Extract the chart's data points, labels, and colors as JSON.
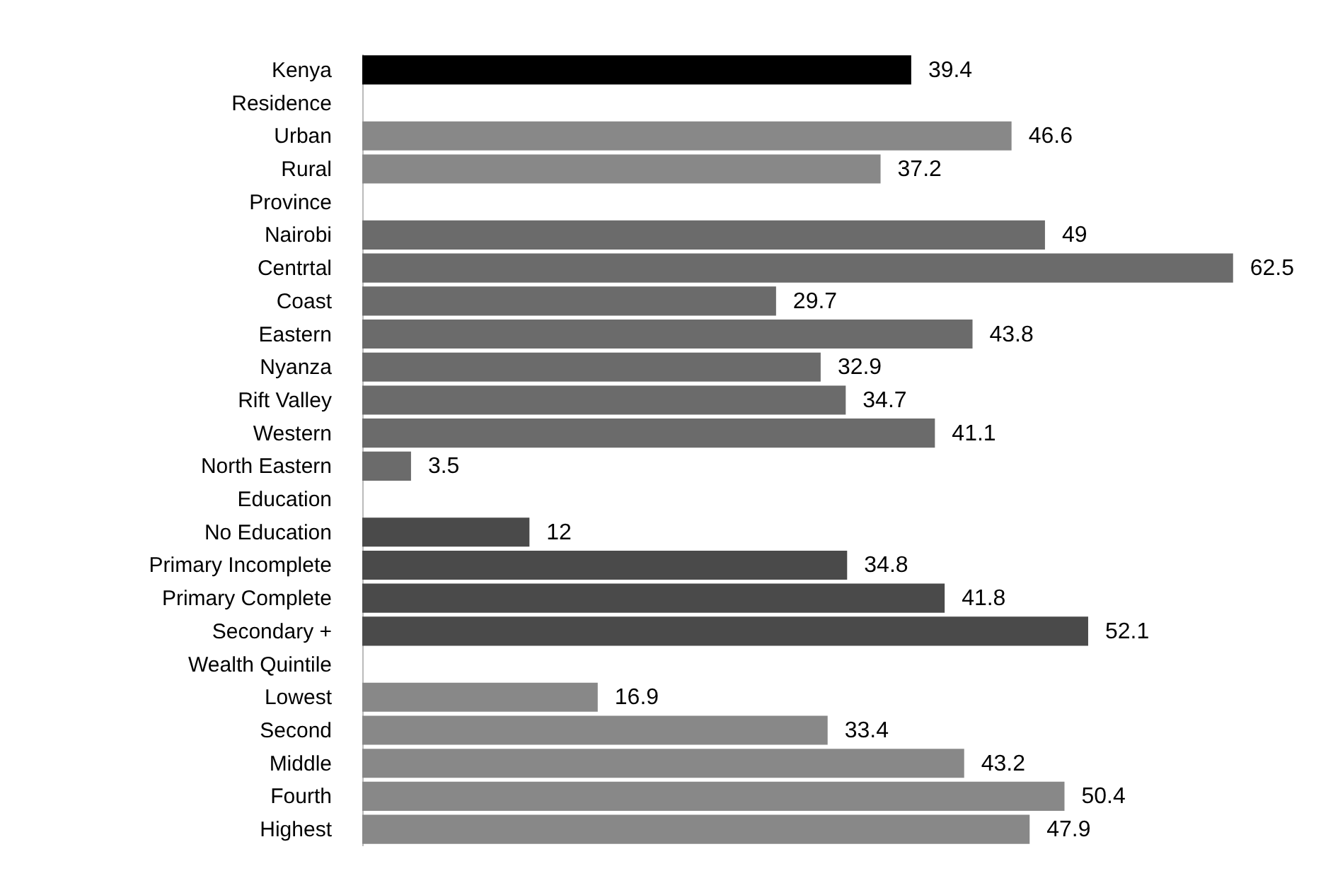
{
  "chart_data": {
    "type": "bar",
    "orientation": "horizontal",
    "data_labels": true,
    "categories": [
      "Kenya",
      "Residence",
      "Urban",
      "Rural",
      "Province",
      "Nairobi",
      "Centrtal",
      "Coast",
      "Eastern",
      "Nyanza",
      "Rift Valley",
      "Western",
      "North Eastern",
      "Education",
      "No Education",
      "Primary Incomplete",
      "Primary Complete",
      "Secondary +",
      "Wealth Quintile",
      "Lowest",
      "Second ",
      "Middle",
      "Fourth",
      "Highest"
    ],
    "values": [
      39.4,
      null,
      46.6,
      37.2,
      null,
      49,
      62.5,
      29.7,
      43.8,
      32.9,
      34.7,
      41.1,
      3.5,
      null,
      12,
      34.8,
      41.8,
      52.1,
      null,
      16.9,
      33.4,
      43.2,
      50.4,
      47.9
    ],
    "colors": [
      "#000000",
      "#ffffff",
      "#888888",
      "#888888",
      "#ffffff",
      "#6b6b6b",
      "#6b6b6b",
      "#6b6b6b",
      "#6b6b6b",
      "#6b6b6b",
      "#6b6b6b",
      "#6b6b6b",
      "#6b6b6b",
      "#ffffff",
      "#4a4a4a",
      "#4a4a4a",
      "#4a4a4a",
      "#4a4a4a",
      "#ffffff",
      "#888888",
      "#888888",
      "#888888",
      "#888888",
      "#888888"
    ]
  }
}
